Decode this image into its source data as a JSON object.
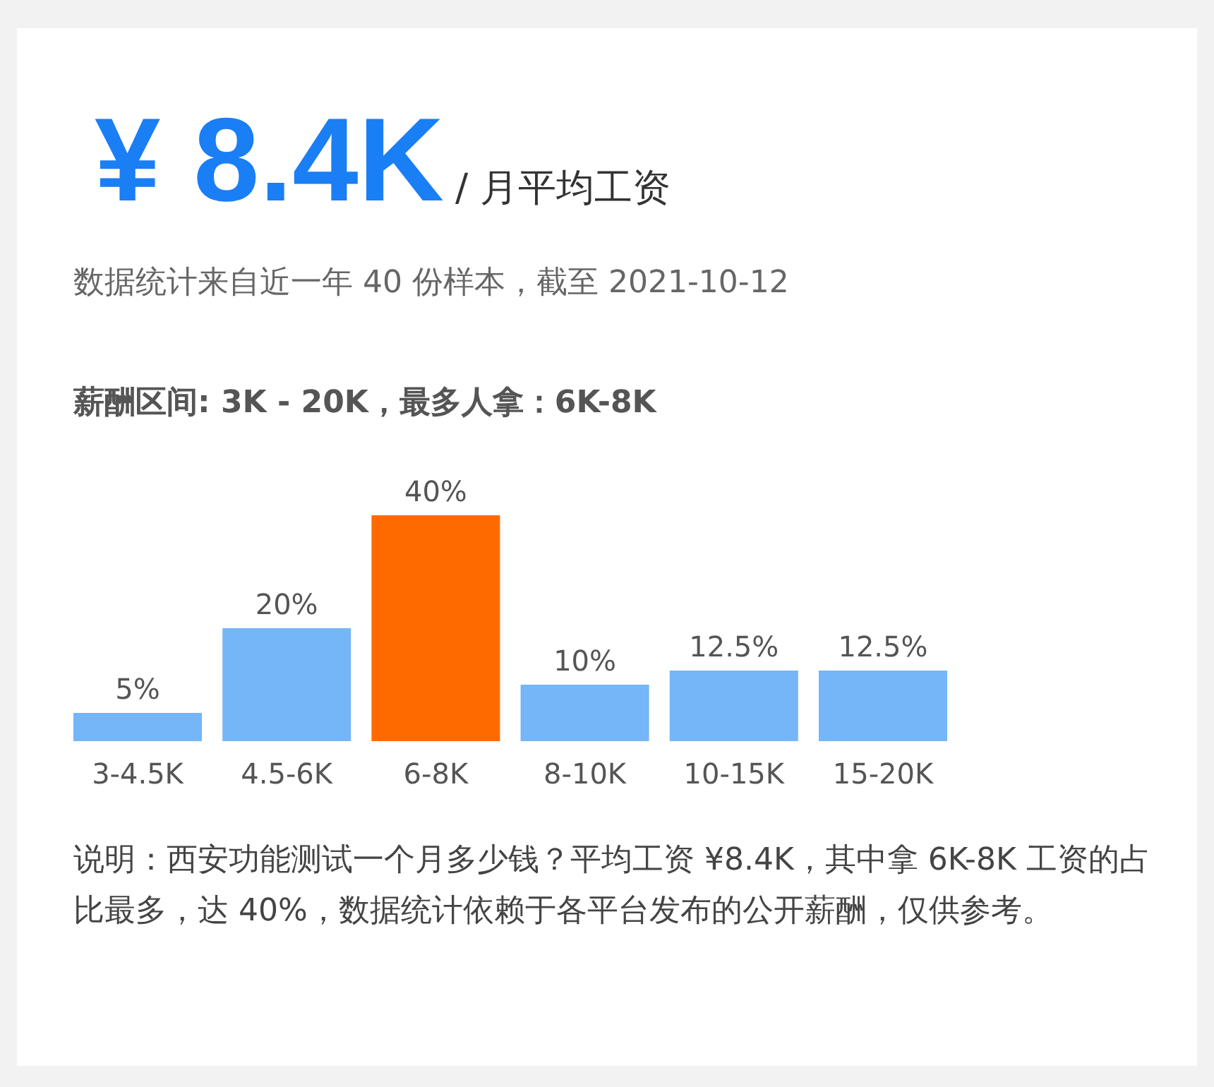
{
  "chart_data": {
    "type": "bar",
    "title": "¥ 8.4K",
    "subtitle": "/ 月平均工资",
    "annotations": [
      "数据统计来自近一年 40 份样本，截至 2021-10-12",
      "薪酬区间: 3K - 20K，最多人拿：6K-8K",
      "说明：西安功能测试一个月多少钱？平均工资 ¥8.4K，其中拿 6K-8K 工资的占比最多，达 40%，数据统计依赖于各平台发布的公开薪酬，仅供参考。"
    ],
    "categories": [
      "3-4.5K",
      "4.5-6K",
      "6-8K",
      "8-10K",
      "10-15K",
      "15-20K"
    ],
    "values": [
      5,
      20,
      40,
      10,
      12.5,
      12.5
    ],
    "colors": [
      "#74b6f7",
      "#74b6f7",
      "#ff6a00",
      "#74b6f7",
      "#74b6f7",
      "#74b6f7"
    ],
    "value_labels": [
      "5%",
      "20%",
      "40%",
      "10%",
      "12.5%",
      "12.5%"
    ]
  }
}
